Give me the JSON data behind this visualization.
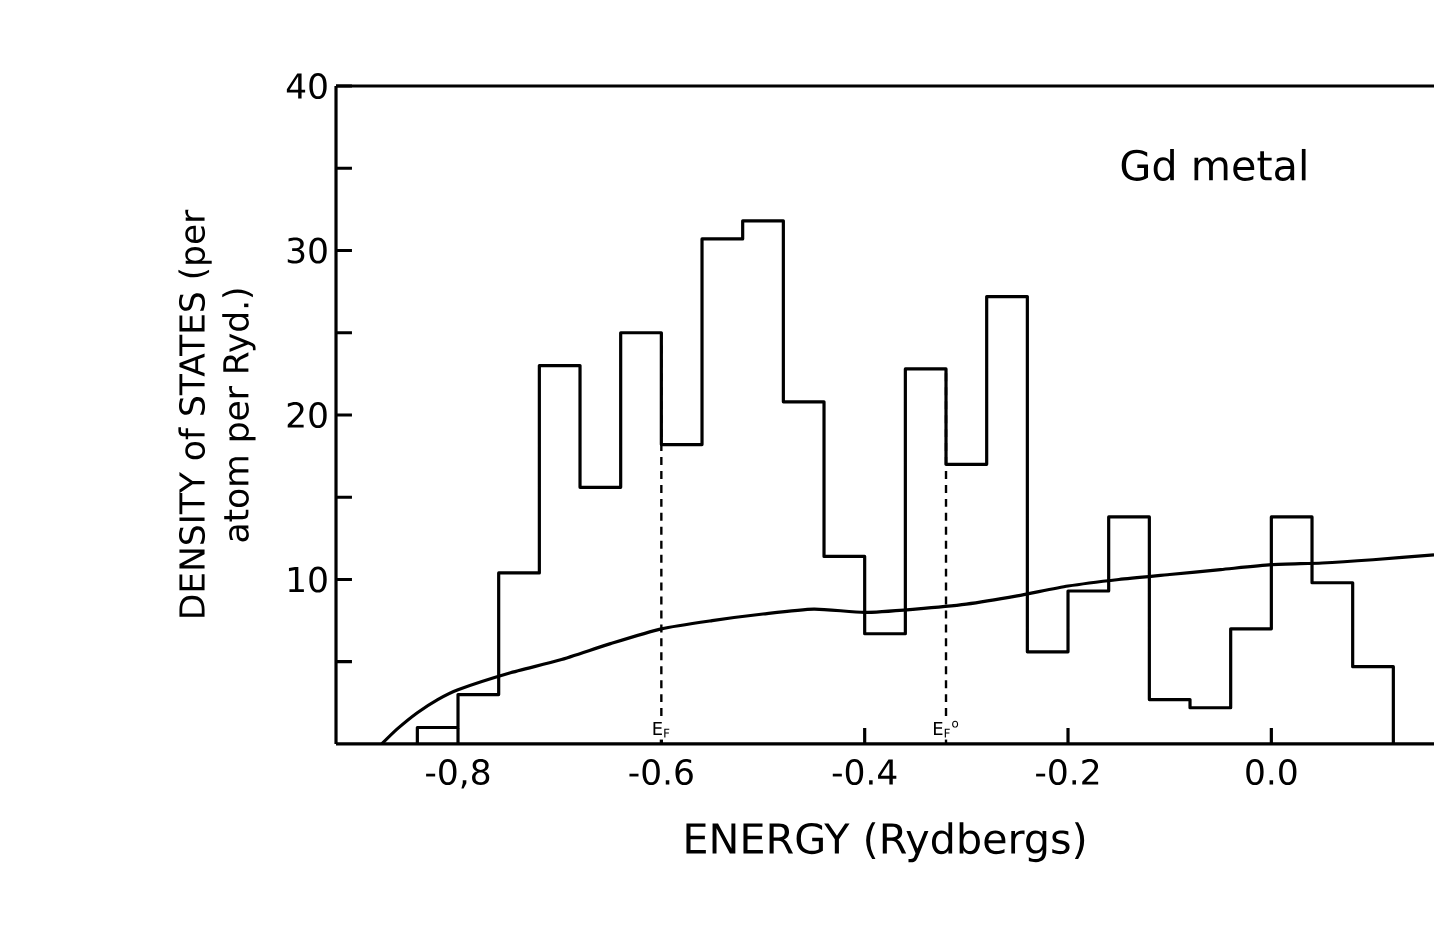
{
  "chart_data": {
    "type": "histogram",
    "xlabel": "ENERGY (Rydbergs)",
    "ylabel": "DENSITY of STATES (per atom per Ryd.)",
    "annotations": [
      "Gd metal"
    ],
    "bins": [
      -0.84,
      -0.8,
      -0.76,
      -0.72,
      -0.68,
      -0.64,
      -0.6,
      -0.56,
      -0.52,
      -0.48,
      -0.44,
      -0.4,
      -0.36,
      -0.32,
      -0.28,
      -0.24,
      -0.2,
      -0.16,
      -0.12,
      -0.08,
      -0.04,
      0.0,
      0.04,
      0.08,
      0.12
    ],
    "values": [
      1.0,
      3.0,
      10.4,
      23.0,
      15.6,
      25.0,
      18.2,
      30.7,
      31.8,
      20.8,
      11.4,
      6.7,
      22.8,
      17.0,
      27.2,
      5.6,
      9.3,
      13.8,
      2.7,
      2.2,
      7.0,
      13.8,
      9.8,
      4.7
    ],
    "color": "#000000",
    "series": [
      {
        "type": "line",
        "color": "#000000",
        "x": [
          -0.875,
          -0.86,
          -0.84,
          -0.82,
          -0.8,
          -0.75,
          -0.7,
          -0.65,
          -0.6,
          -0.55,
          -0.5,
          -0.45,
          -0.4,
          -0.35,
          -0.3,
          -0.25,
          -0.2,
          -0.15,
          -0.1,
          -0.05,
          0.0,
          0.05,
          0.1,
          0.16
        ],
        "values": [
          0,
          0.9,
          1.9,
          2.7,
          3.3,
          4.3,
          5.1,
          6.1,
          7.0,
          7.5,
          7.9,
          8.2,
          8.0,
          8.2,
          8.5,
          9.0,
          9.6,
          10.0,
          10.3,
          10.6,
          10.9,
          11.0,
          11.2,
          11.5
        ]
      }
    ],
    "xlim": [
      -0.92,
      0.16
    ],
    "ylim": [
      0,
      40
    ],
    "xticks": [
      {
        "value": -0.8,
        "label": "-0,8"
      },
      -0.6,
      -0.4,
      -0.2,
      {
        "value": 0.0,
        "label": "0.0"
      }
    ],
    "yticks": [
      {
        "value": 5,
        "label": null
      },
      10,
      {
        "value": 15,
        "label": null
      },
      20,
      {
        "value": 25,
        "label": null
      },
      30,
      {
        "value": 35,
        "label": null
      },
      40
    ],
    "ref_lines": [
      {
        "axis": "x",
        "value": -0.6,
        "label": "E$_{F}$",
        "line_style": "dashed",
        "color": "#000000"
      },
      {
        "axis": "x",
        "value": -0.32,
        "label": "E$_{F}$$^{o}$",
        "line_style": "dashed",
        "color": "#000000"
      }
    ],
    "line_style": "solid"
  }
}
